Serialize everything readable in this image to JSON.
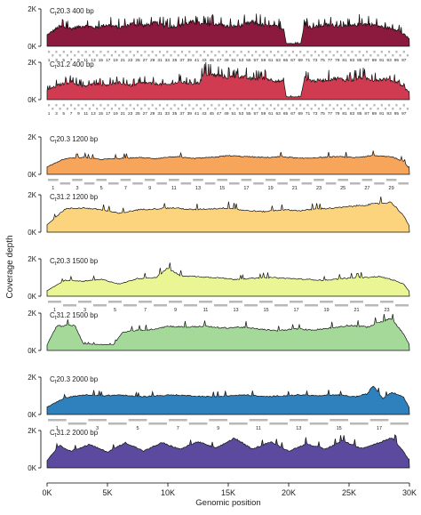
{
  "chart_data": {
    "type": "area",
    "ylabel": "Coverage depth",
    "xlabel": "Genomic position",
    "xlim": [
      0,
      30000
    ],
    "x_ticks": [
      0,
      5000,
      10000,
      15000,
      20000,
      25000,
      30000
    ],
    "x_tick_labels": [
      "0K",
      "5K",
      "10K",
      "15K",
      "20K",
      "25K",
      "30K"
    ],
    "ylim": [
      0,
      2000
    ],
    "y_ticks": [
      0,
      2000
    ],
    "y_tick_labels": [
      "0K",
      "2K"
    ],
    "panels": [
      {
        "label_prefix": "C",
        "label_sub": "t",
        "label_num": "20.3",
        "label_size": "400 bp",
        "color": "#8b1a3e",
        "profile": [
          [
            0,
            600
          ],
          [
            1000,
            1050
          ],
          [
            2000,
            950
          ],
          [
            3000,
            1100
          ],
          [
            4000,
            1000
          ],
          [
            5000,
            1150
          ],
          [
            6000,
            1000
          ],
          [
            7000,
            1200
          ],
          [
            8000,
            1100
          ],
          [
            9000,
            1250
          ],
          [
            10000,
            1050
          ],
          [
            11000,
            1100
          ],
          [
            12000,
            1300
          ],
          [
            13000,
            1150
          ],
          [
            14000,
            1200
          ],
          [
            15000,
            1050
          ],
          [
            16000,
            1100
          ],
          [
            17000,
            1300
          ],
          [
            18000,
            1100
          ],
          [
            19000,
            1050
          ],
          [
            19600,
            950
          ],
          [
            19800,
            150
          ],
          [
            21000,
            150
          ],
          [
            21300,
            1100
          ],
          [
            22000,
            1000
          ],
          [
            23000,
            1150
          ],
          [
            24000,
            1100
          ],
          [
            25000,
            1050
          ],
          [
            26000,
            1200
          ],
          [
            27000,
            1150
          ],
          [
            28000,
            1000
          ],
          [
            29000,
            900
          ],
          [
            30000,
            400
          ]
        ],
        "amplicon_labels": [
          "1",
          "3",
          "5",
          "7",
          "9",
          "11",
          "13",
          "15",
          "17",
          "19",
          "21",
          "23",
          "25",
          "27",
          "29",
          "31",
          "33",
          "35",
          "37",
          "39",
          "41",
          "43",
          "45",
          "47",
          "49",
          "51",
          "53",
          "55",
          "57",
          "59",
          "61",
          "63",
          "65",
          "67",
          "69",
          "71",
          "73",
          "75",
          "77",
          "79",
          "81",
          "83",
          "85",
          "87",
          "89",
          "91",
          "93",
          "95",
          "97"
        ]
      },
      {
        "label_prefix": "C",
        "label_sub": "t",
        "label_num": "31.2",
        "label_size": "400 bp",
        "color": "#d03b52",
        "profile": [
          [
            0,
            500
          ],
          [
            1000,
            800
          ],
          [
            2000,
            950
          ],
          [
            3000,
            700
          ],
          [
            4000,
            850
          ],
          [
            5000,
            800
          ],
          [
            6000,
            900
          ],
          [
            7000,
            750
          ],
          [
            8000,
            900
          ],
          [
            9000,
            850
          ],
          [
            10000,
            800
          ],
          [
            11000,
            950
          ],
          [
            12000,
            850
          ],
          [
            12600,
            900
          ],
          [
            13000,
            1400
          ],
          [
            14000,
            1300
          ],
          [
            15000,
            1200
          ],
          [
            16000,
            1250
          ],
          [
            17000,
            1100
          ],
          [
            18000,
            1150
          ],
          [
            19000,
            1000
          ],
          [
            19600,
            950
          ],
          [
            19800,
            150
          ],
          [
            21000,
            150
          ],
          [
            21300,
            1150
          ],
          [
            22000,
            1000
          ],
          [
            23000,
            1050
          ],
          [
            24000,
            1150
          ],
          [
            25000,
            1000
          ],
          [
            26000,
            1200
          ],
          [
            27000,
            1050
          ],
          [
            28000,
            1100
          ],
          [
            29000,
            950
          ],
          [
            30000,
            400
          ]
        ],
        "amplicon_labels": [
          "1",
          "3",
          "5",
          "7",
          "9",
          "11",
          "13",
          "15",
          "17",
          "19",
          "21",
          "23",
          "25",
          "27",
          "29",
          "31",
          "33",
          "35",
          "37",
          "39",
          "41",
          "43",
          "45",
          "47",
          "49",
          "51",
          "53",
          "55",
          "57",
          "59",
          "61",
          "63",
          "65",
          "67",
          "69",
          "71",
          "73",
          "75",
          "77",
          "79",
          "81",
          "83",
          "85",
          "87",
          "89",
          "91",
          "93",
          "95",
          "97"
        ]
      },
      {
        "label_prefix": "C",
        "label_sub": "t",
        "label_num": "20.3",
        "label_size": "1200 bp",
        "color": "#f7a55a",
        "profile": [
          [
            0,
            400
          ],
          [
            1500,
            850
          ],
          [
            3000,
            900
          ],
          [
            4500,
            800
          ],
          [
            6000,
            850
          ],
          [
            7500,
            900
          ],
          [
            9000,
            850
          ],
          [
            10500,
            950
          ],
          [
            12000,
            850
          ],
          [
            13500,
            900
          ],
          [
            15000,
            1000
          ],
          [
            16500,
            950
          ],
          [
            18000,
            900
          ],
          [
            19500,
            950
          ],
          [
            21000,
            850
          ],
          [
            22500,
            900
          ],
          [
            24000,
            950
          ],
          [
            25500,
            900
          ],
          [
            27000,
            1000
          ],
          [
            28500,
            950
          ],
          [
            29500,
            700
          ],
          [
            30000,
            300
          ]
        ],
        "amplicon_labels": [
          "1",
          "3",
          "5",
          "7",
          "9",
          "11",
          "13",
          "15",
          "17",
          "19",
          "21",
          "23",
          "25",
          "27",
          "29"
        ]
      },
      {
        "label_prefix": "C",
        "label_sub": "t",
        "label_num": "31.2",
        "label_size": "1200 bp",
        "color": "#fdd47e",
        "profile": [
          [
            0,
            400
          ],
          [
            1500,
            1250
          ],
          [
            3000,
            1300
          ],
          [
            4500,
            1200
          ],
          [
            6000,
            1000
          ],
          [
            7500,
            1200
          ],
          [
            9000,
            1250
          ],
          [
            10500,
            1300
          ],
          [
            12000,
            1200
          ],
          [
            13500,
            1250
          ],
          [
            15000,
            1300
          ],
          [
            16500,
            1150
          ],
          [
            18000,
            1100
          ],
          [
            19500,
            1200
          ],
          [
            21000,
            1150
          ],
          [
            22500,
            1250
          ],
          [
            24000,
            1300
          ],
          [
            25500,
            1400
          ],
          [
            27000,
            1500
          ],
          [
            28500,
            1600
          ],
          [
            29500,
            900
          ],
          [
            30000,
            300
          ]
        ],
        "amplicon_labels": []
      },
      {
        "label_prefix": "C",
        "label_sub": "t",
        "label_num": "20.3",
        "label_size": "1500 bp",
        "color": "#eaf593",
        "profile": [
          [
            0,
            300
          ],
          [
            1500,
            850
          ],
          [
            3000,
            800
          ],
          [
            4500,
            900
          ],
          [
            6000,
            650
          ],
          [
            7500,
            950
          ],
          [
            9000,
            1000
          ],
          [
            10000,
            1500
          ],
          [
            11000,
            1100
          ],
          [
            12500,
            1050
          ],
          [
            14000,
            1000
          ],
          [
            15500,
            900
          ],
          [
            17000,
            950
          ],
          [
            18500,
            1000
          ],
          [
            20000,
            950
          ],
          [
            21500,
            900
          ],
          [
            23000,
            850
          ],
          [
            24500,
            950
          ],
          [
            26000,
            1000
          ],
          [
            27500,
            1050
          ],
          [
            28500,
            900
          ],
          [
            29500,
            650
          ],
          [
            30000,
            250
          ]
        ],
        "amplicon_labels": [
          "1",
          "3",
          "5",
          "7",
          "9",
          "11",
          "13",
          "15",
          "17",
          "19",
          "21",
          "23"
        ]
      },
      {
        "label_prefix": "C",
        "label_sub": "t",
        "label_num": "31.2",
        "label_size": "1500 bp",
        "color": "#a5d99a",
        "profile": [
          [
            0,
            300
          ],
          [
            800,
            1300
          ],
          [
            2300,
            1350
          ],
          [
            3000,
            350
          ],
          [
            5500,
            300
          ],
          [
            6200,
            950
          ],
          [
            7000,
            1050
          ],
          [
            8500,
            1100
          ],
          [
            10000,
            1300
          ],
          [
            11500,
            1250
          ],
          [
            13000,
            1300
          ],
          [
            14500,
            1200
          ],
          [
            16000,
            1250
          ],
          [
            17500,
            1150
          ],
          [
            19000,
            1050
          ],
          [
            20500,
            1150
          ],
          [
            22000,
            1100
          ],
          [
            23500,
            1200
          ],
          [
            25000,
            1350
          ],
          [
            26500,
            1250
          ],
          [
            27500,
            1500
          ],
          [
            28500,
            1700
          ],
          [
            29500,
            900
          ],
          [
            30000,
            300
          ]
        ],
        "amplicon_labels": []
      },
      {
        "label_prefix": "C",
        "label_sub": "t",
        "label_num": "20.3",
        "label_size": "2000 bp",
        "color": "#2f81bd",
        "profile": [
          [
            0,
            400
          ],
          [
            1500,
            900
          ],
          [
            3000,
            1050
          ],
          [
            4500,
            1000
          ],
          [
            6000,
            1050
          ],
          [
            7500,
            950
          ],
          [
            9000,
            1000
          ],
          [
            10500,
            1050
          ],
          [
            12000,
            1000
          ],
          [
            13500,
            950
          ],
          [
            15000,
            1000
          ],
          [
            16500,
            1050
          ],
          [
            18000,
            950
          ],
          [
            19500,
            1000
          ],
          [
            21000,
            1050
          ],
          [
            22500,
            1000
          ],
          [
            24000,
            1050
          ],
          [
            25500,
            950
          ],
          [
            26500,
            1100
          ],
          [
            27000,
            1550
          ],
          [
            27800,
            850
          ],
          [
            28500,
            1200
          ],
          [
            29500,
            950
          ],
          [
            30000,
            350
          ]
        ],
        "amplicon_labels": [
          "1",
          "3",
          "5",
          "7",
          "9",
          "11",
          "13",
          "15",
          "17"
        ]
      },
      {
        "label_prefix": "C",
        "label_sub": "t",
        "label_num": "31.2",
        "label_size": "2000 bp",
        "color": "#5b4a9e",
        "profile": [
          [
            0,
            400
          ],
          [
            1000,
            1200
          ],
          [
            2000,
            900
          ],
          [
            3500,
            1250
          ],
          [
            5000,
            850
          ],
          [
            6500,
            1350
          ],
          [
            8000,
            900
          ],
          [
            9500,
            1350
          ],
          [
            11000,
            1000
          ],
          [
            12500,
            1400
          ],
          [
            14000,
            1050
          ],
          [
            15500,
            1600
          ],
          [
            17000,
            1000
          ],
          [
            18500,
            1400
          ],
          [
            20000,
            900
          ],
          [
            21500,
            1300
          ],
          [
            23000,
            1000
          ],
          [
            24500,
            1450
          ],
          [
            26000,
            1050
          ],
          [
            27500,
            1350
          ],
          [
            28500,
            1600
          ],
          [
            29500,
            900
          ],
          [
            30000,
            350
          ]
        ],
        "amplicon_labels": []
      }
    ]
  }
}
